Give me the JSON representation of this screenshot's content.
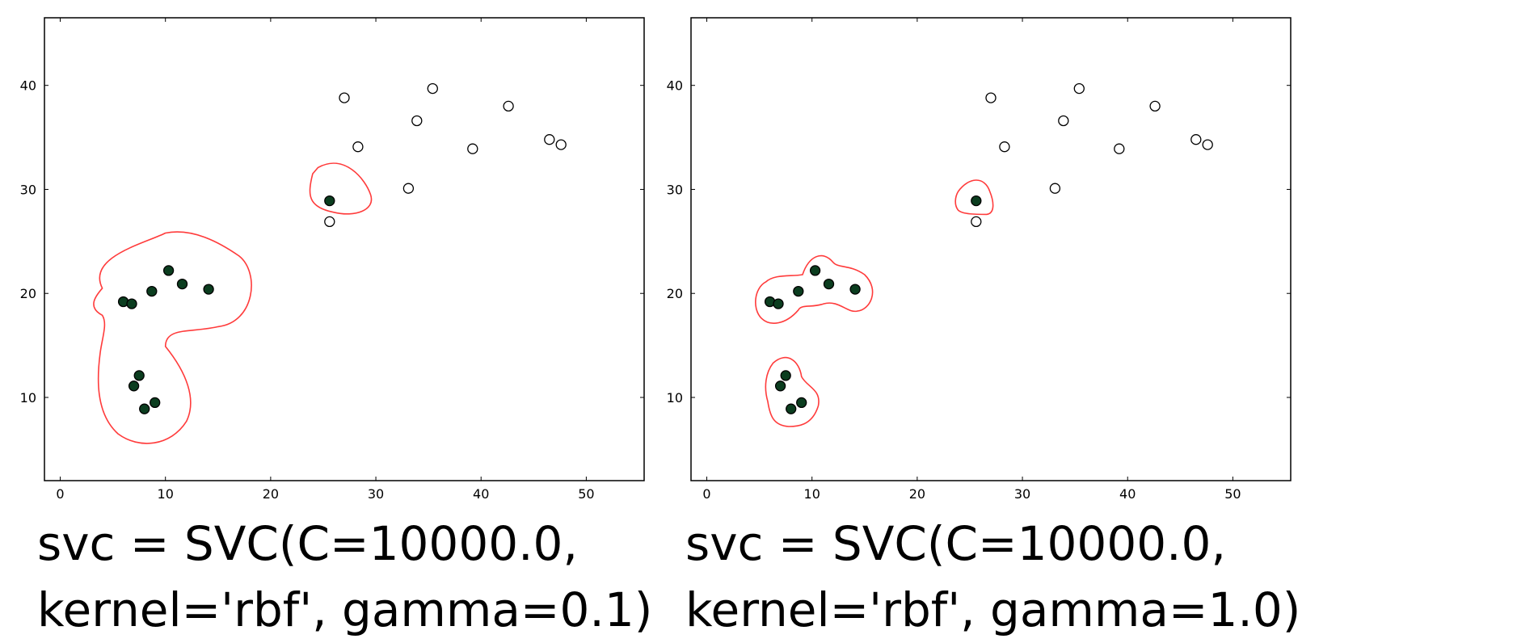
{
  "chart_data": [
    {
      "type": "scatter",
      "title": "",
      "xlabel": "",
      "ylabel": "",
      "xlim": [
        -1.5,
        55.5
      ],
      "ylim": [
        2,
        46.5
      ],
      "xticks": [
        0,
        10,
        20,
        30,
        40,
        50
      ],
      "yticks": [
        10,
        20,
        30,
        40
      ],
      "grid": false,
      "caption_line1": "svc = SVC(C=10000.0,",
      "caption_line2": "kernel='rbf', gamma=0.1)",
      "series": [
        {
          "role": "positive",
          "points": [
            [
              6,
              19.2
            ],
            [
              6.8,
              19
            ],
            [
              8.7,
              20.2
            ],
            [
              10.3,
              22.2
            ],
            [
              11.6,
              20.9
            ],
            [
              14.1,
              20.4
            ],
            [
              7.5,
              12.1
            ],
            [
              7,
              11.1
            ],
            [
              8,
              8.9
            ],
            [
              9,
              9.5
            ],
            [
              25.6,
              28.9
            ]
          ]
        },
        {
          "role": "negative",
          "points": [
            [
              25.6,
              26.9
            ],
            [
              27,
              38.8
            ],
            [
              28.3,
              34.1
            ],
            [
              33.1,
              30.1
            ],
            [
              33.9,
              36.6
            ],
            [
              35.4,
              39.7
            ],
            [
              39.2,
              33.9
            ],
            [
              42.6,
              38
            ],
            [
              46.5,
              34.8
            ],
            [
              47.6,
              34.3
            ]
          ]
        }
      ],
      "decision_boundary_color": "#ff3b3b",
      "positive_color": "#0b3d1f",
      "negative_color": "#ffffff",
      "marker_edge_color": "#000000"
    },
    {
      "type": "scatter",
      "title": "",
      "xlabel": "",
      "ylabel": "",
      "xlim": [
        -1.5,
        55.5
      ],
      "ylim": [
        2,
        46.5
      ],
      "xticks": [
        0,
        10,
        20,
        30,
        40,
        50
      ],
      "yticks": [
        10,
        20,
        30,
        40
      ],
      "grid": false,
      "caption_line1": "svc = SVC(C=10000.0,",
      "caption_line2": "kernel='rbf', gamma=1.0)",
      "series": [
        {
          "role": "positive",
          "points": [
            [
              6,
              19.2
            ],
            [
              6.8,
              19
            ],
            [
              8.7,
              20.2
            ],
            [
              10.3,
              22.2
            ],
            [
              11.6,
              20.9
            ],
            [
              14.1,
              20.4
            ],
            [
              7.5,
              12.1
            ],
            [
              7,
              11.1
            ],
            [
              8,
              8.9
            ],
            [
              9,
              9.5
            ],
            [
              25.6,
              28.9
            ]
          ]
        },
        {
          "role": "negative",
          "points": [
            [
              25.6,
              26.9
            ],
            [
              27,
              38.8
            ],
            [
              28.3,
              34.1
            ],
            [
              33.1,
              30.1
            ],
            [
              33.9,
              36.6
            ],
            [
              35.4,
              39.7
            ],
            [
              39.2,
              33.9
            ],
            [
              42.6,
              38
            ],
            [
              46.5,
              34.8
            ],
            [
              47.6,
              34.3
            ]
          ]
        }
      ],
      "decision_boundary_color": "#ff3b3b",
      "positive_color": "#0b3d1f",
      "negative_color": "#ffffff",
      "marker_edge_color": "#000000"
    }
  ]
}
